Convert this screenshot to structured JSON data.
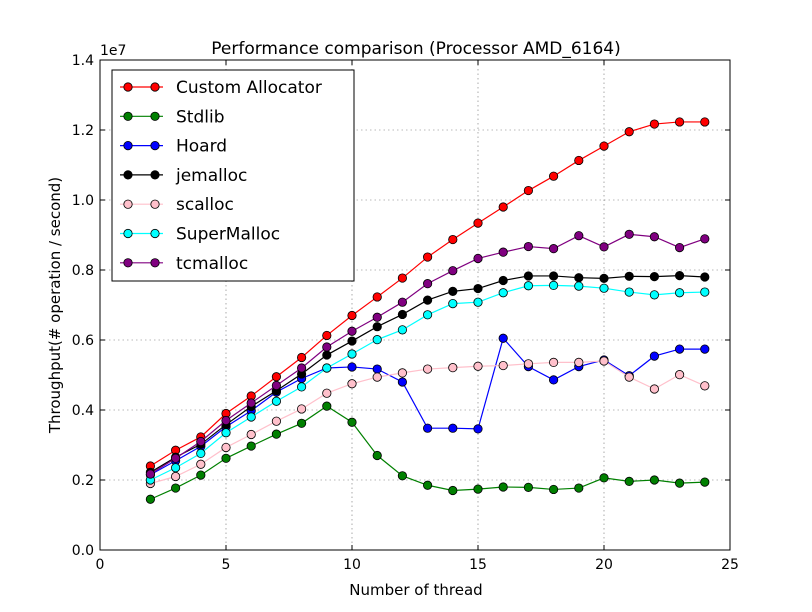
{
  "chart_data": {
    "type": "line",
    "title": "Performance comparison (Processor AMD_6164)",
    "xlabel": "Number of thread",
    "ylabel": "Throughput(# operation / second)",
    "y_scale_label": "1e7",
    "xlim": [
      0,
      25
    ],
    "ylim": [
      0,
      14000000
    ],
    "x_ticks": [
      0,
      5,
      10,
      15,
      20,
      25
    ],
    "x_tick_labels": [
      "0",
      "5",
      "10",
      "15",
      "20",
      "25"
    ],
    "y_ticks": [
      0,
      2000000,
      4000000,
      6000000,
      8000000,
      10000000,
      12000000,
      14000000
    ],
    "y_tick_labels": [
      "0.0",
      "0.2",
      "0.4",
      "0.6",
      "0.8",
      "1.0",
      "1.2",
      "1.4"
    ],
    "grid": true,
    "legend_position": "top-left",
    "x": [
      2,
      3,
      4,
      5,
      6,
      7,
      8,
      9,
      10,
      11,
      12,
      13,
      14,
      15,
      16,
      17,
      18,
      19,
      20,
      21,
      22,
      23,
      24
    ],
    "series": [
      {
        "name": "Custom Allocator",
        "color": "#ff0000",
        "marker_fill": "#ff0000",
        "values": [
          2400000,
          2850000,
          3230000,
          3900000,
          4400000,
          4950000,
          5500000,
          6130000,
          6700000,
          7230000,
          7770000,
          8370000,
          8870000,
          9340000,
          9800000,
          10270000,
          10680000,
          11130000,
          11540000,
          11950000,
          12170000,
          12230000,
          12230000
        ]
      },
      {
        "name": "Stdlib",
        "color": "#008000",
        "marker_fill": "#008000",
        "values": [
          1450000,
          1770000,
          2140000,
          2620000,
          2970000,
          3310000,
          3620000,
          4110000,
          3650000,
          2700000,
          2120000,
          1850000,
          1700000,
          1740000,
          1800000,
          1790000,
          1730000,
          1770000,
          2060000,
          1960000,
          2000000,
          1910000,
          1940000
        ]
      },
      {
        "name": "Hoard",
        "color": "#0000ff",
        "marker_fill": "#0000ff",
        "values": [
          2150000,
          2550000,
          2960000,
          3520000,
          3980000,
          4510000,
          4900000,
          5200000,
          5230000,
          5170000,
          4800000,
          3480000,
          3480000,
          3460000,
          6050000,
          5240000,
          4860000,
          5240000,
          5430000,
          4980000,
          5540000,
          5740000,
          5740000
        ]
      },
      {
        "name": "jemalloc",
        "color": "#000000",
        "marker_fill": "#000000",
        "values": [
          2220000,
          2650000,
          3020000,
          3580000,
          4100000,
          4550000,
          5030000,
          5570000,
          5970000,
          6380000,
          6730000,
          7140000,
          7390000,
          7470000,
          7700000,
          7830000,
          7830000,
          7780000,
          7760000,
          7820000,
          7810000,
          7840000,
          7800000
        ]
      },
      {
        "name": "scalloc",
        "color": "#ffc0cb",
        "marker_fill": "#ffc0cb",
        "values": [
          1900000,
          2100000,
          2450000,
          2930000,
          3300000,
          3680000,
          4030000,
          4480000,
          4750000,
          4940000,
          5060000,
          5170000,
          5210000,
          5250000,
          5270000,
          5320000,
          5360000,
          5360000,
          5400000,
          4940000,
          4600000,
          5010000,
          4690000
        ]
      },
      {
        "name": "SuperMalloc",
        "color": "#00ffff",
        "marker_fill": "#00ffff",
        "values": [
          2000000,
          2350000,
          2760000,
          3350000,
          3800000,
          4250000,
          4660000,
          5200000,
          5600000,
          6010000,
          6290000,
          6720000,
          7040000,
          7080000,
          7350000,
          7550000,
          7560000,
          7540000,
          7480000,
          7370000,
          7290000,
          7350000,
          7370000
        ]
      },
      {
        "name": "tcmalloc",
        "color": "#800080",
        "marker_fill": "#800080",
        "values": [
          2170000,
          2620000,
          3100000,
          3700000,
          4200000,
          4700000,
          5200000,
          5800000,
          6250000,
          6650000,
          7080000,
          7610000,
          7980000,
          8330000,
          8510000,
          8670000,
          8610000,
          8980000,
          8660000,
          9020000,
          8950000,
          8640000,
          8890000
        ]
      }
    ]
  }
}
